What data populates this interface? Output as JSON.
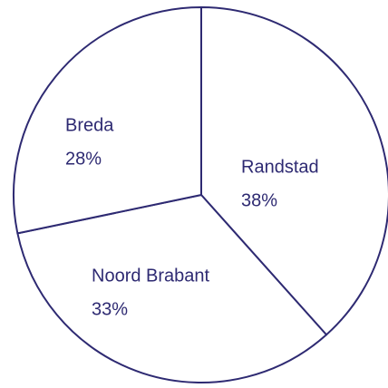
{
  "chart_data": {
    "type": "pie",
    "categories": [
      "Randstad",
      "Noord Brabant",
      "Breda"
    ],
    "values": [
      38,
      33,
      28
    ],
    "value_labels": [
      "38%",
      "33%",
      "28%"
    ],
    "color": "#ffffff",
    "edge_color": "#2e2a72"
  }
}
